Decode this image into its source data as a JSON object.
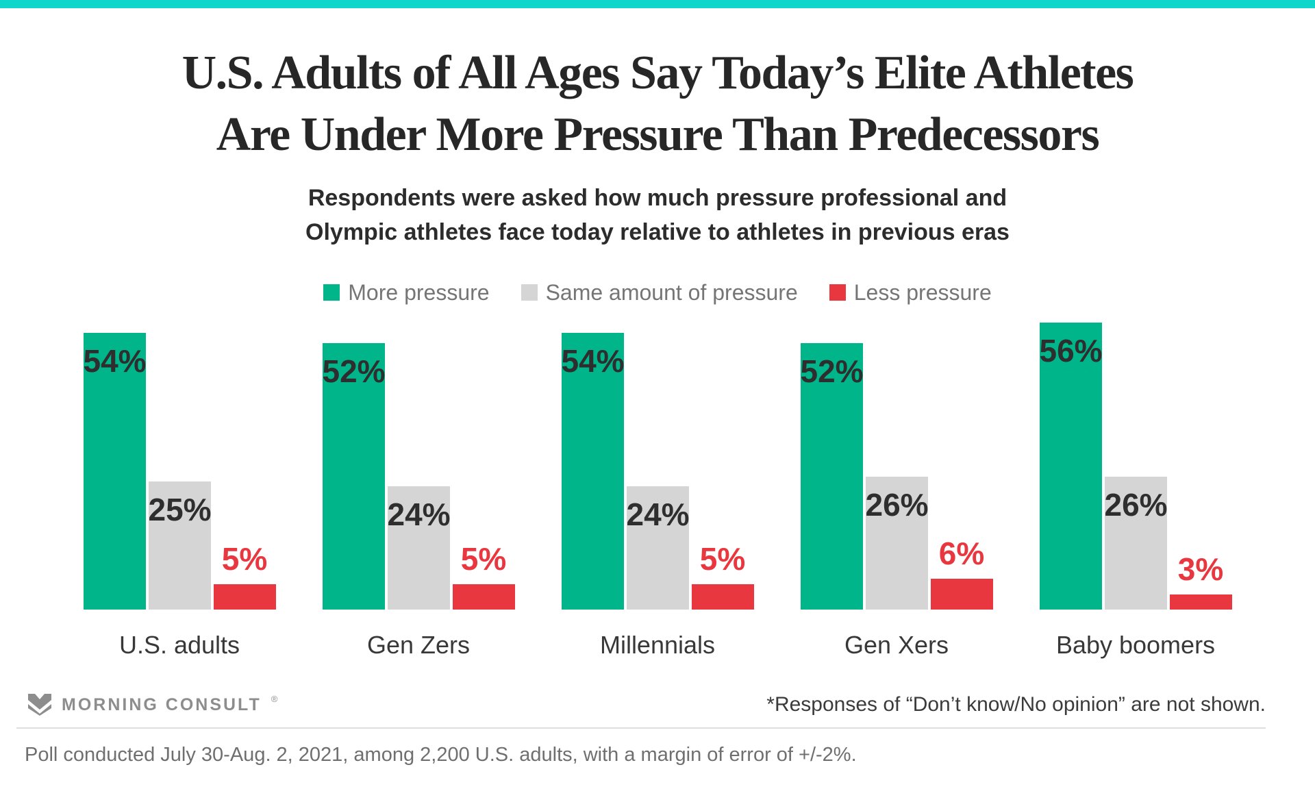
{
  "page": {
    "accent_bar_color": "#0fd6ca"
  },
  "header": {
    "title_line1": "U.S. Adults of All Ages Say Today’s Elite Athletes",
    "title_line2": "Are Under More Pressure Than Predecessors",
    "subtitle_line1": "Respondents were asked how much pressure professional and",
    "subtitle_line2": "Olympic athletes face today relative to athletes in previous eras"
  },
  "chart_data": {
    "type": "bar",
    "title": "U.S. Adults of All Ages Say Today’s Elite Athletes Are Under More Pressure Than Predecessors",
    "categories": [
      "U.S. adults",
      "Gen Zers",
      "Millennials",
      "Gen Xers",
      "Baby boomers"
    ],
    "series": [
      {
        "name": "More pressure",
        "color": "#00b58a",
        "values": [
          54,
          52,
          54,
          52,
          56
        ]
      },
      {
        "name": "Same amount of pressure",
        "color": "#d5d5d5",
        "values": [
          25,
          24,
          24,
          26,
          26
        ]
      },
      {
        "name": "Less pressure",
        "color": "#e9373f",
        "values": [
          5,
          5,
          5,
          6,
          3
        ]
      }
    ],
    "value_suffix": "%",
    "value_labels": "shown",
    "xlabel": "",
    "ylabel": "",
    "ylim": [
      0,
      56
    ],
    "grid": false,
    "legend_position": "top"
  },
  "footer": {
    "logo_text": "MORNING CONSULT",
    "logo_reg": "®",
    "footnote": "*Responses of “Don’t know/No opinion” are not shown.",
    "poll_note": "Poll conducted July 30-Aug. 2, 2021, among 2,200 U.S. adults, with a margin of error of +/-2%."
  }
}
